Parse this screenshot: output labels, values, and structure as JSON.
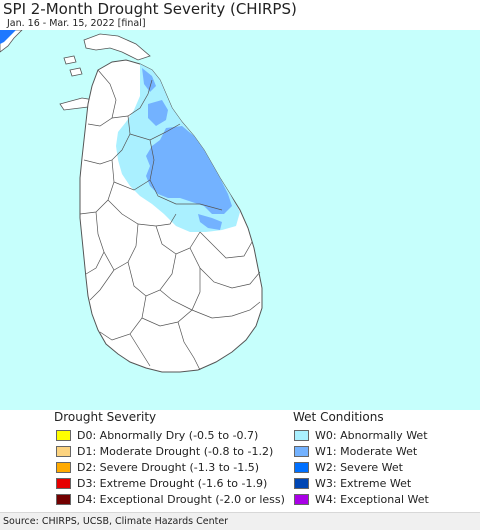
{
  "header": {
    "title": "SPI 2-Month Drought Severity (CHIRPS)",
    "subtitle": "Jan. 16 - Mar. 15, 2022 [final]"
  },
  "colors": {
    "ocean": "#c6fffc",
    "land": "#ffffff",
    "borders": "#555555"
  },
  "legend": {
    "drought_title": "Drought Severity",
    "drought": [
      {
        "label": "D0: Abnormally Dry (-0.5 to -0.7)",
        "color": "#ffff00"
      },
      {
        "label": "D1: Moderate Drought (-0.8 to -1.2)",
        "color": "#fcd37f"
      },
      {
        "label": "D2: Severe Drought (-1.3 to -1.5)",
        "color": "#ffaa00"
      },
      {
        "label": "D3: Extreme Drought (-1.6 to -1.9)",
        "color": "#e60000"
      },
      {
        "label": "D4: Exceptional Drought (-2.0 or less)",
        "color": "#730000"
      }
    ],
    "wet_title": "Wet Conditions",
    "wet": [
      {
        "label": "W0: Abnormally Wet",
        "color": "#aaf0ff"
      },
      {
        "label": "W1: Moderate Wet",
        "color": "#73b2ff"
      },
      {
        "label": "W2: Severe Wet",
        "color": "#0070ff"
      },
      {
        "label": "W3: Extreme Wet",
        "color": "#0046b4"
      },
      {
        "label": "W4: Exceptional Wet",
        "color": "#a900e6"
      }
    ]
  },
  "footer": {
    "source": "Source: CHIRPS, UCSB, Climate Hazards Center"
  }
}
